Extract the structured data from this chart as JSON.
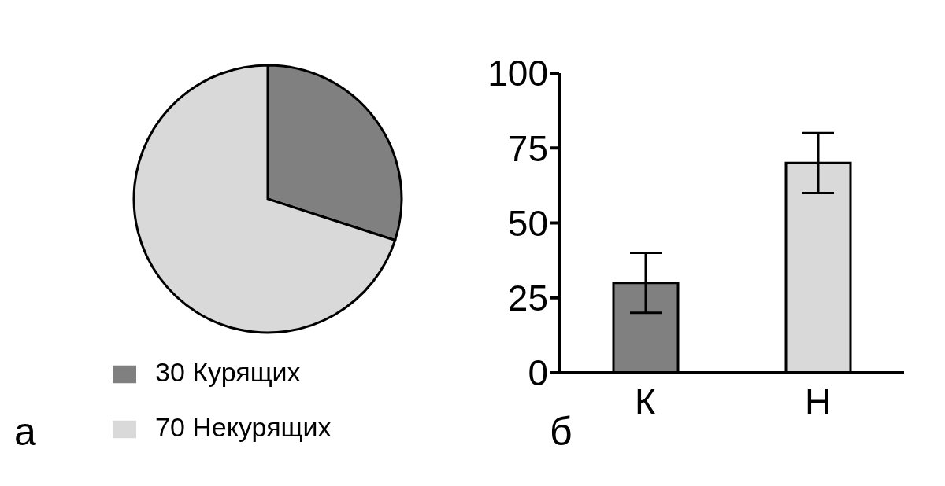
{
  "chart_data": [
    {
      "type": "pie",
      "categories": [
        "30 Курящих",
        "70 Некурящих"
      ],
      "values": [
        30,
        70
      ],
      "colors": [
        "#808080",
        "#d9d9d9"
      ],
      "legend": "bottom left",
      "annotations": [
        "а"
      ]
    },
    {
      "type": "bar",
      "categories": [
        "К",
        "Н"
      ],
      "values": [
        30,
        70
      ],
      "errors": [
        10,
        10
      ],
      "colors": [
        "#808080",
        "#d9d9d9"
      ],
      "ylim": [
        0,
        100
      ],
      "yticks": [
        0,
        25,
        50,
        75,
        100
      ],
      "grid": false,
      "annotations": [
        "б"
      ]
    }
  ]
}
